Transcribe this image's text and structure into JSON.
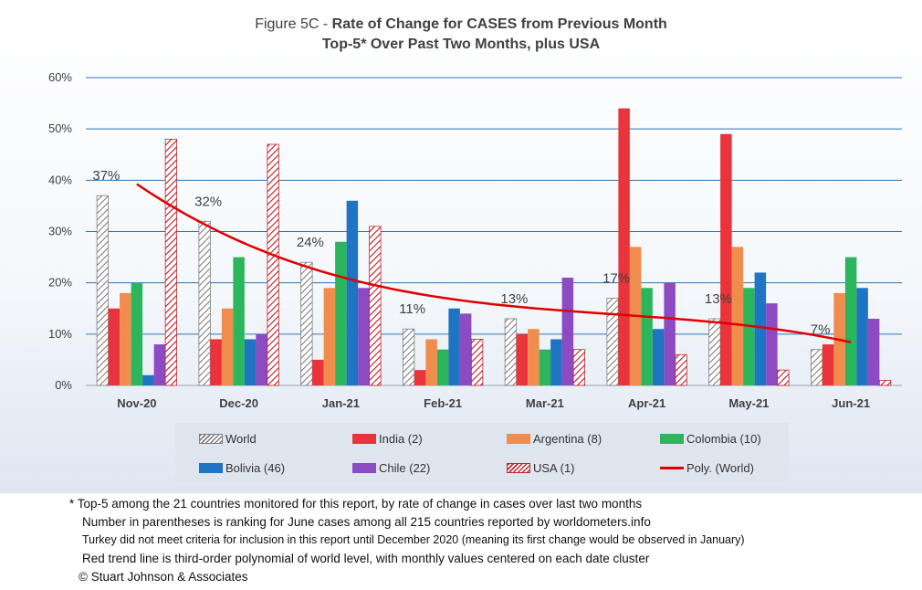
{
  "chart_data": {
    "type": "bar",
    "title": "Figure 5C - Rate of Change for CASES from Previous Month",
    "title_prefix": "Figure 5C - ",
    "title_main": "Rate of Change for CASES from Previous Month",
    "subtitle": "Top-5* Over Past Two Months, plus USA",
    "categories": [
      "Nov-20",
      "Dec-20",
      "Jan-21",
      "Feb-21",
      "Mar-21",
      "Apr-21",
      "May-21",
      "Jun-21"
    ],
    "ylim": [
      0,
      60
    ],
    "yticks": [
      "0%",
      "10%",
      "20%",
      "30%",
      "40%",
      "50%",
      "60%"
    ],
    "grid": true,
    "legend_position": "bottom",
    "series": [
      {
        "name": "World",
        "values": [
          37,
          32,
          24,
          11,
          13,
          17,
          13,
          7
        ],
        "color": "#d9d9d9",
        "pattern": "hatch-gray",
        "data_labels": [
          "37%",
          "32%",
          "24%",
          "11%",
          "13%",
          "17%",
          "13%",
          "7%"
        ]
      },
      {
        "name": "India (2)",
        "values": [
          15,
          9,
          5,
          3,
          10,
          54,
          49,
          8
        ],
        "color": "#e8343a"
      },
      {
        "name": "Argentina (8)",
        "values": [
          18,
          15,
          19,
          9,
          11,
          27,
          27,
          18
        ],
        "color": "#f08c4c"
      },
      {
        "name": "Colombia (10)",
        "values": [
          20,
          25,
          28,
          7,
          7,
          19,
          19,
          25
        ],
        "color": "#2cb65c"
      },
      {
        "name": "Bolivia (46)",
        "values": [
          2,
          9,
          36,
          15,
          9,
          11,
          22,
          19
        ],
        "color": "#1f74c4"
      },
      {
        "name": "Chile (22)",
        "values": [
          8,
          10,
          19,
          14,
          21,
          20,
          16,
          13
        ],
        "color": "#8c4bc2"
      },
      {
        "name": "USA (1)",
        "values": [
          48,
          47,
          31,
          9,
          7,
          6,
          3,
          1
        ],
        "color": "#c0282e",
        "pattern": "hatch-red"
      }
    ],
    "trendline": {
      "name": "Poly. (World)",
      "type": "polynomial-3",
      "color": "#e00000"
    }
  },
  "footnotes": [
    "* Top-5 among the 21 countries monitored for this report, by rate of change in cases over last two months",
    "Number in parentheses is ranking for June cases among all 215 countries reported by worldometers.info",
    "Turkey did not meet criteria for inclusion in this report until December 2020 (meaning its first change would be observed in January)",
    "Red trend line is third-order polynomial of world level, with monthly values centered on each date cluster",
    "© Stuart Johnson & Associates"
  ]
}
